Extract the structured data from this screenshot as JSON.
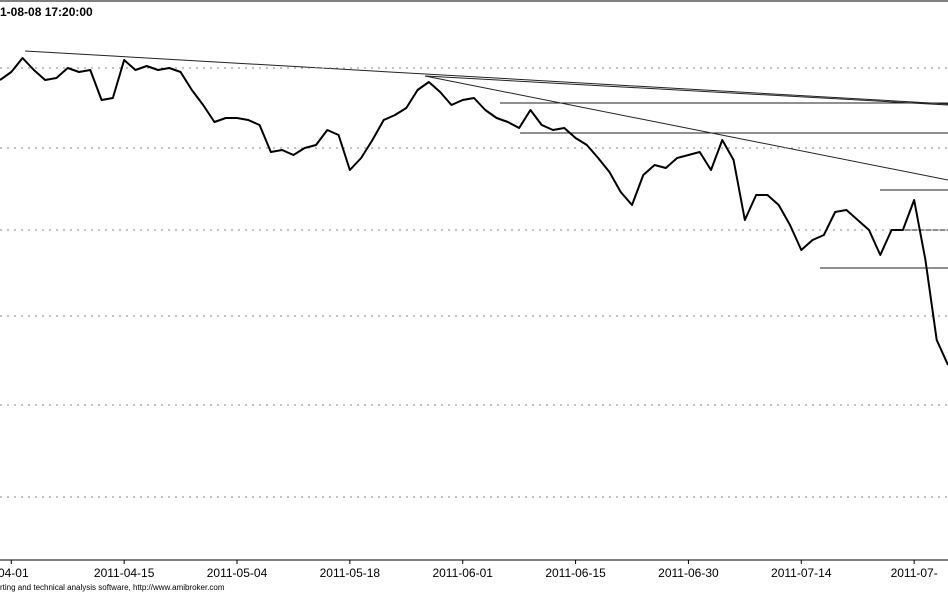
{
  "chart_data": {
    "type": "line",
    "title": "1-08-08 17:20:00",
    "footer": "rting and technical analysis software, http://www.amibroker.com",
    "x": [
      0,
      1,
      2,
      3,
      4,
      5,
      6,
      7,
      8,
      9,
      10,
      11,
      12,
      13,
      14,
      15,
      16,
      17,
      18,
      19,
      20,
      21,
      22,
      23,
      24,
      25,
      26,
      27,
      28,
      29,
      30,
      31,
      32,
      33,
      34,
      35,
      36,
      37,
      38,
      39,
      40,
      41,
      42,
      43,
      44,
      45,
      46,
      47,
      48,
      49,
      50,
      51,
      52,
      53,
      54,
      55,
      56,
      57,
      58,
      59,
      60,
      61,
      62,
      63,
      64,
      65,
      66,
      67,
      68,
      69,
      70,
      71,
      72,
      73,
      74,
      75,
      76,
      77,
      78,
      79,
      80,
      81,
      82,
      83,
      84
    ],
    "values": [
      480,
      488,
      502,
      490,
      480,
      482,
      492,
      488,
      490,
      460,
      462,
      500,
      490,
      494,
      490,
      492,
      488,
      470,
      455,
      438,
      442,
      442,
      440,
      435,
      408,
      410,
      405,
      412,
      415,
      430,
      425,
      390,
      402,
      420,
      440,
      445,
      452,
      470,
      478,
      468,
      455,
      460,
      462,
      450,
      442,
      438,
      432,
      450,
      435,
      430,
      432,
      422,
      415,
      402,
      388,
      368,
      355,
      385,
      395,
      392,
      402,
      405,
      408,
      390,
      420,
      400,
      340,
      365,
      365,
      355,
      335,
      310,
      320,
      325,
      348,
      350,
      340,
      330,
      305,
      330,
      330,
      360,
      300,
      220,
      195
    ],
    "color": "#000000",
    "xlim": [
      0,
      84
    ],
    "xticks": [
      {
        "value": 1,
        "label": "-04-01"
      },
      {
        "value": 11,
        "label": "2011-04-15"
      },
      {
        "value": 21,
        "label": "2011-05-04"
      },
      {
        "value": 31,
        "label": "2011-05-18"
      },
      {
        "value": 41,
        "label": "2011-06-01"
      },
      {
        "value": 51,
        "label": "2011-06-15"
      },
      {
        "value": 61,
        "label": "2011-06-30"
      },
      {
        "value": 71,
        "label": "2011-07-14"
      },
      {
        "value": 81,
        "label": "2011-07-"
      }
    ],
    "ylim": [
      0,
      560
    ],
    "ygrid": [
      492,
      412,
      330,
      244,
      155,
      63
    ]
  }
}
